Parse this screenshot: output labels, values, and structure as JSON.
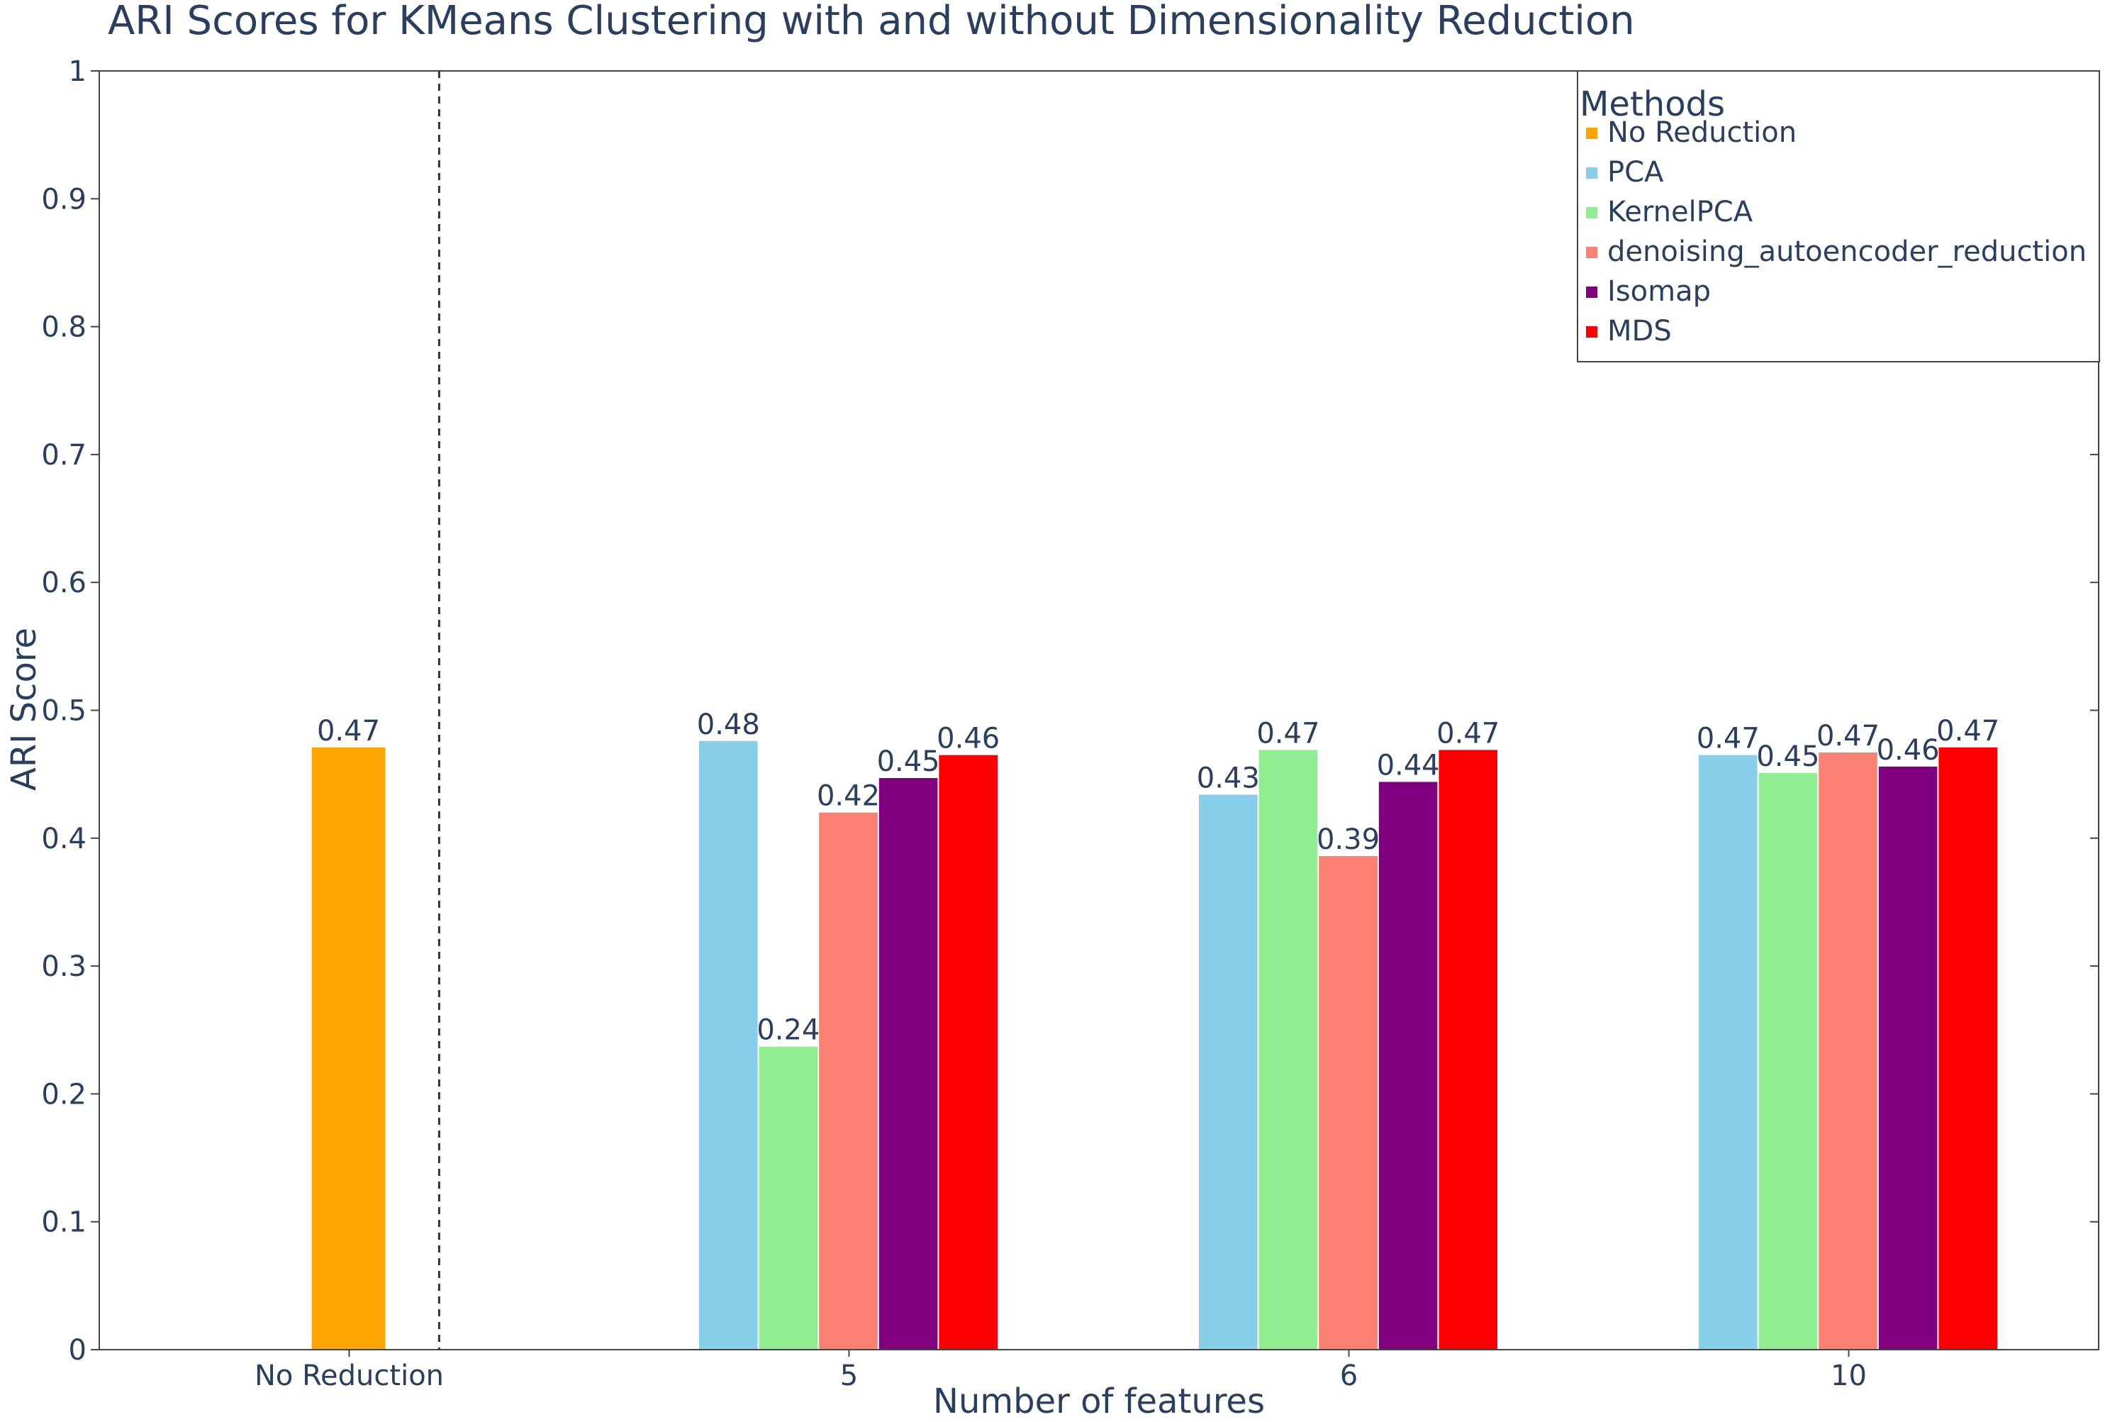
{
  "chart_data": {
    "type": "bar",
    "title": "ARI Scores for KMeans Clustering with and without Dimensionality Reduction",
    "xlabel": "Number of features",
    "ylabel": "ARI Score",
    "ylim": [
      0,
      1
    ],
    "yticks": [
      "0",
      "0.1",
      "0.2",
      "0.3",
      "0.4",
      "0.5",
      "0.6",
      "0.7",
      "0.8",
      "0.9",
      "1"
    ],
    "categories": [
      "No Reduction",
      "5",
      "6",
      "10"
    ],
    "legend": {
      "title": "Methods",
      "position": "top-right"
    },
    "separator_after_category": "No Reduction",
    "series": [
      {
        "name": "No Reduction",
        "color": "#FFA500",
        "values": [
          0.471,
          null,
          null,
          null
        ],
        "labels": [
          "0.47",
          "",
          "",
          ""
        ]
      },
      {
        "name": "PCA",
        "color": "#87CEEB",
        "values": [
          null,
          0.476,
          0.434,
          0.465
        ],
        "labels": [
          "",
          "0.48",
          "0.43",
          "0.47"
        ]
      },
      {
        "name": "KernelPCA",
        "color": "#90EE90",
        "values": [
          null,
          0.237,
          0.469,
          0.451
        ],
        "labels": [
          "",
          "0.24",
          "0.47",
          "0.45"
        ]
      },
      {
        "name": "denoising_autoencoder_reduction",
        "color": "#FA8072",
        "values": [
          null,
          0.42,
          0.386,
          0.467
        ],
        "labels": [
          "",
          "0.42",
          "0.39",
          "0.47"
        ]
      },
      {
        "name": "Isomap",
        "color": "#800080",
        "values": [
          null,
          0.447,
          0.444,
          0.456
        ],
        "labels": [
          "",
          "0.45",
          "0.44",
          "0.46"
        ]
      },
      {
        "name": "MDS",
        "color": "#FF0000",
        "values": [
          null,
          0.465,
          0.469,
          0.471
        ],
        "labels": [
          "",
          "0.46",
          "0.47",
          "0.47"
        ]
      }
    ]
  }
}
